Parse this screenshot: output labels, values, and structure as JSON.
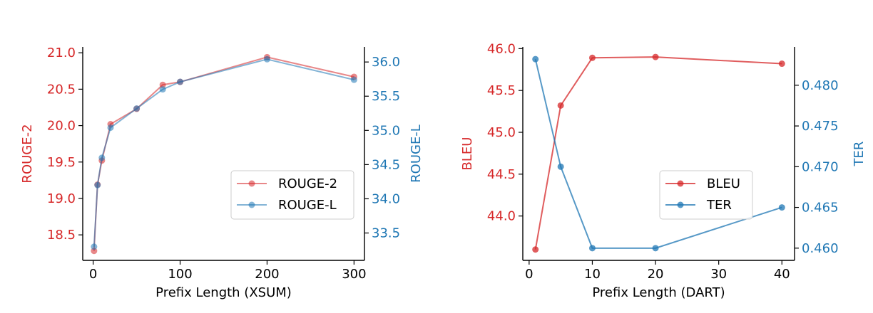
{
  "colors": {
    "red": "#d62728",
    "blue": "#1f77b4",
    "axis": "#000000"
  },
  "chart_data": [
    {
      "type": "line",
      "xlabel": "Prefix Length (XSUM)",
      "ylabel_left": "ROUGE-2",
      "ylabel_right": "ROUGE-L",
      "xlim": [
        -12,
        312
      ],
      "ylim_left": [
        18.15,
        21.08
      ],
      "ylim_right": [
        33.1,
        36.22
      ],
      "xticks": [
        0,
        100,
        200,
        300
      ],
      "yticks_left": [
        18.5,
        19.0,
        19.5,
        20.0,
        20.5,
        21.0
      ],
      "yticks_right": [
        33.5,
        34.0,
        34.5,
        35.0,
        35.5,
        36.0
      ],
      "legend_position": "center-right",
      "series": [
        {
          "name": "ROUGE-2",
          "axis": "left",
          "x": [
            1,
            5,
            10,
            20,
            50,
            80,
            100,
            200,
            300
          ],
          "values": [
            18.28,
            19.19,
            19.52,
            20.02,
            20.23,
            20.56,
            20.6,
            20.94,
            20.67
          ]
        },
        {
          "name": "ROUGE-L",
          "axis": "right",
          "x": [
            1,
            5,
            10,
            20,
            50,
            80,
            100,
            200,
            300
          ],
          "values": [
            33.3,
            34.2,
            34.6,
            35.04,
            35.32,
            35.6,
            35.71,
            36.04,
            35.74
          ]
        }
      ]
    },
    {
      "type": "line",
      "xlabel": "Prefix Length (DART)",
      "ylabel_left": "BLEU",
      "ylabel_right": "TER",
      "xlim": [
        -1,
        42
      ],
      "ylim_left": [
        43.47,
        46.02
      ],
      "ylim_right": [
        0.4585,
        0.4847
      ],
      "xticks": [
        0,
        10,
        20,
        30,
        40
      ],
      "yticks_left": [
        44.0,
        44.5,
        45.0,
        45.5,
        46.0
      ],
      "yticks_right": [
        0.46,
        0.465,
        0.47,
        0.475,
        0.48
      ],
      "legend_position": "center-right",
      "series": [
        {
          "name": "BLEU",
          "axis": "left",
          "x": [
            1,
            5,
            10,
            20,
            40
          ],
          "values": [
            43.6,
            45.32,
            45.89,
            45.9,
            45.82
          ]
        },
        {
          "name": "TER",
          "axis": "right",
          "x": [
            1,
            5,
            10,
            20,
            40
          ],
          "values": [
            0.4832,
            0.47,
            0.46,
            0.46,
            0.465
          ]
        }
      ]
    }
  ]
}
